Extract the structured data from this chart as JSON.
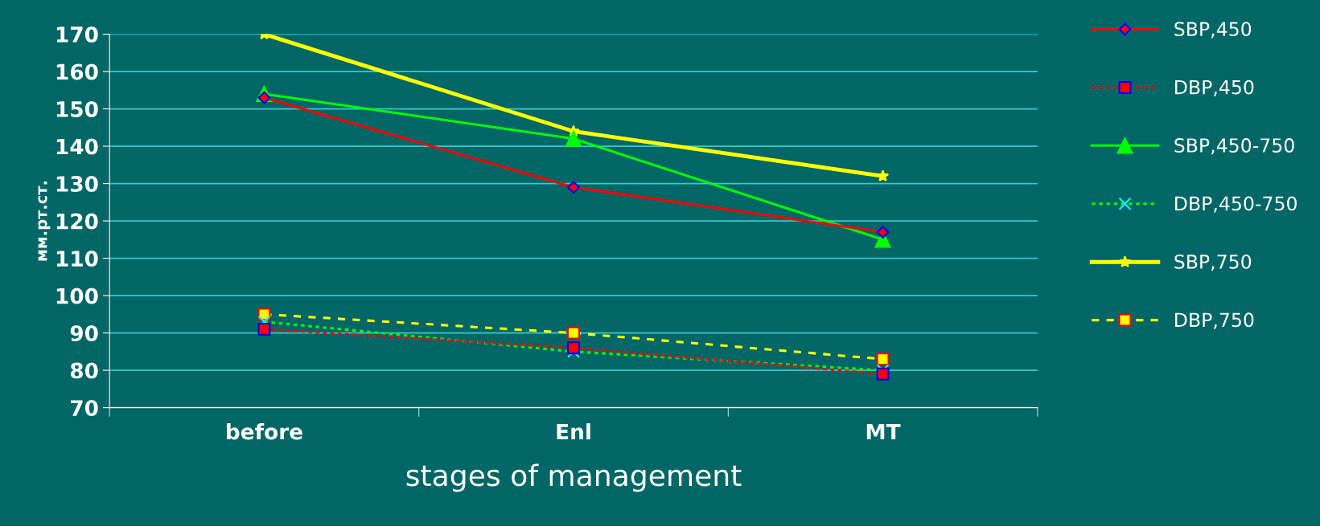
{
  "chart_data": {
    "type": "line",
    "xlabel": "stages of management",
    "ylabel": "мм.рт.ст.",
    "categories": [
      "before",
      "Enl",
      "MT"
    ],
    "series": [
      {
        "name": "SBP,450",
        "color": "#ff0000",
        "values": [
          153,
          129,
          117
        ],
        "marker": "diamond",
        "line_style": "solid"
      },
      {
        "name": "DBP,450",
        "color": "#ff0000",
        "values": [
          91,
          86,
          79
        ],
        "marker": "square",
        "line_style": "dotted"
      },
      {
        "name": "SBP,450-750",
        "color": "#00ff00",
        "values": [
          154,
          142,
          115
        ],
        "marker": "triangle",
        "line_style": "solid"
      },
      {
        "name": "DBP,450-750",
        "color": "#00ff00",
        "values": [
          93,
          85,
          80
        ],
        "marker": "cross",
        "line_style": "dotted"
      },
      {
        "name": "SBP,750",
        "color": "#ffff00",
        "values": [
          170,
          144,
          132
        ],
        "marker": "star",
        "line_style": "solid"
      },
      {
        "name": "DBP,750",
        "color": "#ffff00",
        "values": [
          95,
          90,
          83
        ],
        "marker": "square",
        "line_style": "dashed"
      }
    ],
    "ylim": [
      70,
      170
    ],
    "yticks": [
      70,
      80,
      90,
      100,
      110,
      120,
      130,
      140,
      150,
      160,
      170
    ],
    "grid": "y",
    "legend": "right"
  }
}
